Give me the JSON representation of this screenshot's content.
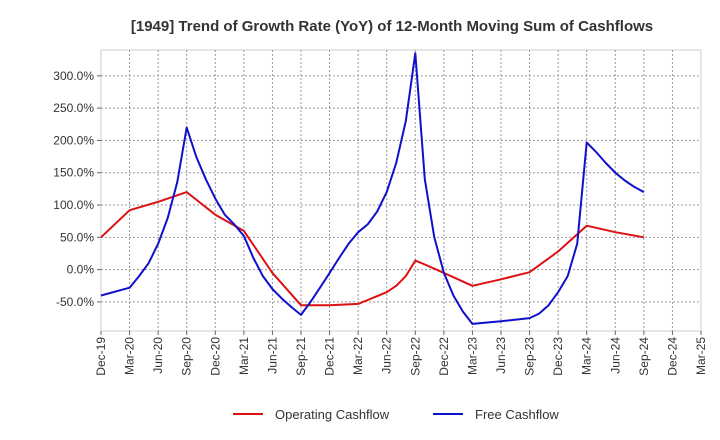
{
  "chart_data": {
    "type": "line",
    "title": "[1949]  Trend of Growth Rate (YoY) of 12-Month Moving Sum of Cashflows",
    "xlabel": "",
    "ylabel": "",
    "x_tick_labels": [
      "Dec-19",
      "Mar-20",
      "Jun-20",
      "Sep-20",
      "Dec-20",
      "Mar-21",
      "Jun-21",
      "Sep-21",
      "Dec-21",
      "Mar-22",
      "Jun-22",
      "Sep-22",
      "Dec-22",
      "Mar-23",
      "Jun-23",
      "Sep-23",
      "Dec-23",
      "Mar-24",
      "Jun-24",
      "Sep-24",
      "Dec-24",
      "Mar-25"
    ],
    "y_tick_values": [
      -50,
      0,
      50,
      100,
      150,
      200,
      250,
      300
    ],
    "y_tick_labels": [
      "-50.0%",
      "0.0%",
      "50.0%",
      "100.0%",
      "150.0%",
      "200.0%",
      "250.0%",
      "300.0%"
    ],
    "ylim": [
      -95,
      340
    ],
    "grid": true,
    "legend_position": "bottom",
    "series": [
      {
        "name": "Operating Cashflow",
        "color": "#dd1111",
        "points": [
          [
            0,
            50
          ],
          [
            3,
            92
          ],
          [
            6,
            105
          ],
          [
            9,
            120
          ],
          [
            12,
            85
          ],
          [
            15,
            60
          ],
          [
            18,
            -5
          ],
          [
            21,
            -55
          ],
          [
            24,
            -55
          ],
          [
            27,
            -53
          ],
          [
            28,
            -47
          ],
          [
            30,
            -35
          ],
          [
            31,
            -25
          ],
          [
            32,
            -10
          ],
          [
            33,
            14
          ],
          [
            34,
            8
          ],
          [
            36,
            -5
          ],
          [
            39,
            -25
          ],
          [
            42,
            -15
          ],
          [
            45,
            -4
          ],
          [
            48,
            28
          ],
          [
            51,
            68
          ],
          [
            54,
            58
          ],
          [
            57,
            50
          ]
        ]
      },
      {
        "name": "Free Cashflow",
        "color": "#1010cc",
        "points": [
          [
            0,
            -40
          ],
          [
            3,
            -28
          ],
          [
            4,
            -10
          ],
          [
            5,
            10
          ],
          [
            6,
            40
          ],
          [
            7,
            80
          ],
          [
            8,
            135
          ],
          [
            9,
            220
          ],
          [
            10,
            175
          ],
          [
            11,
            140
          ],
          [
            12,
            110
          ],
          [
            13,
            85
          ],
          [
            14,
            70
          ],
          [
            15,
            52
          ],
          [
            16,
            18
          ],
          [
            17,
            -10
          ],
          [
            18,
            -30
          ],
          [
            19,
            -45
          ],
          [
            20,
            -58
          ],
          [
            21,
            -70
          ],
          [
            22,
            -50
          ],
          [
            23,
            -28
          ],
          [
            24,
            -5
          ],
          [
            25,
            18
          ],
          [
            26,
            40
          ],
          [
            27,
            58
          ],
          [
            28,
            70
          ],
          [
            29,
            90
          ],
          [
            30,
            120
          ],
          [
            31,
            165
          ],
          [
            32,
            230
          ],
          [
            33,
            335
          ],
          [
            34,
            140
          ],
          [
            35,
            50
          ],
          [
            36,
            -5
          ],
          [
            37,
            -40
          ],
          [
            38,
            -65
          ],
          [
            39,
            -84
          ],
          [
            42,
            -80
          ],
          [
            45,
            -75
          ],
          [
            46,
            -68
          ],
          [
            47,
            -55
          ],
          [
            48,
            -35
          ],
          [
            49,
            -10
          ],
          [
            50,
            40
          ],
          [
            51,
            197
          ],
          [
            52,
            182
          ],
          [
            53,
            165
          ],
          [
            54,
            150
          ],
          [
            55,
            138
          ],
          [
            56,
            128
          ],
          [
            57,
            120
          ]
        ]
      }
    ]
  }
}
